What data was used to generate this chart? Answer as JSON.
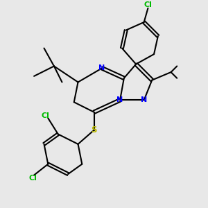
{
  "bg_color": "#e8e8e8",
  "bond_color": "#000000",
  "N_color": "#0000ff",
  "S_color": "#bbbb00",
  "Cl_color": "#00bb00",
  "line_width": 1.5,
  "fig_size": [
    3.0,
    3.0
  ],
  "dpi": 100,
  "xlim": [
    0,
    10
  ],
  "ylim": [
    0,
    10
  ]
}
